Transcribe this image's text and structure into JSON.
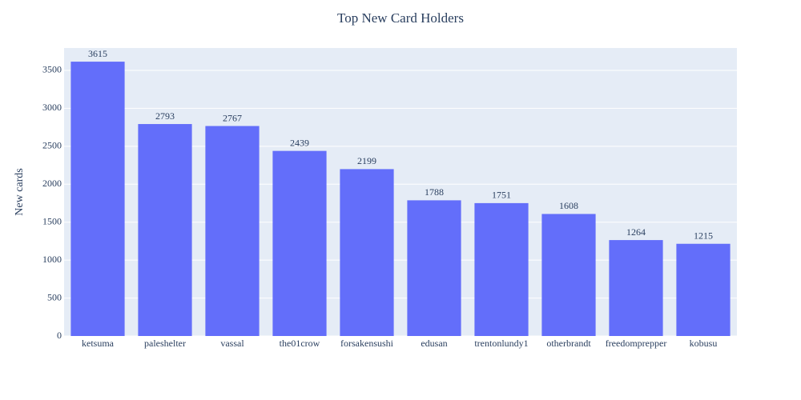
{
  "chart_data": {
    "type": "bar",
    "title": "Top New Card Holders",
    "y_label": "New cards",
    "categories": [
      "ketsuma",
      "paleshelter",
      "vassal",
      "the01crow",
      "forsakensushi",
      "edusan",
      "trentonlundy1",
      "otherbrandt",
      "freedomprepper",
      "kobusu"
    ],
    "values": [
      3615,
      2793,
      2767,
      2439,
      2199,
      1788,
      1751,
      1608,
      1264,
      1215
    ],
    "color": "#636efa",
    "ylim": [
      0,
      3795
    ],
    "yticks": [
      0,
      500,
      1000,
      1500,
      2000,
      2500,
      3000,
      3500
    ],
    "grid": true
  }
}
